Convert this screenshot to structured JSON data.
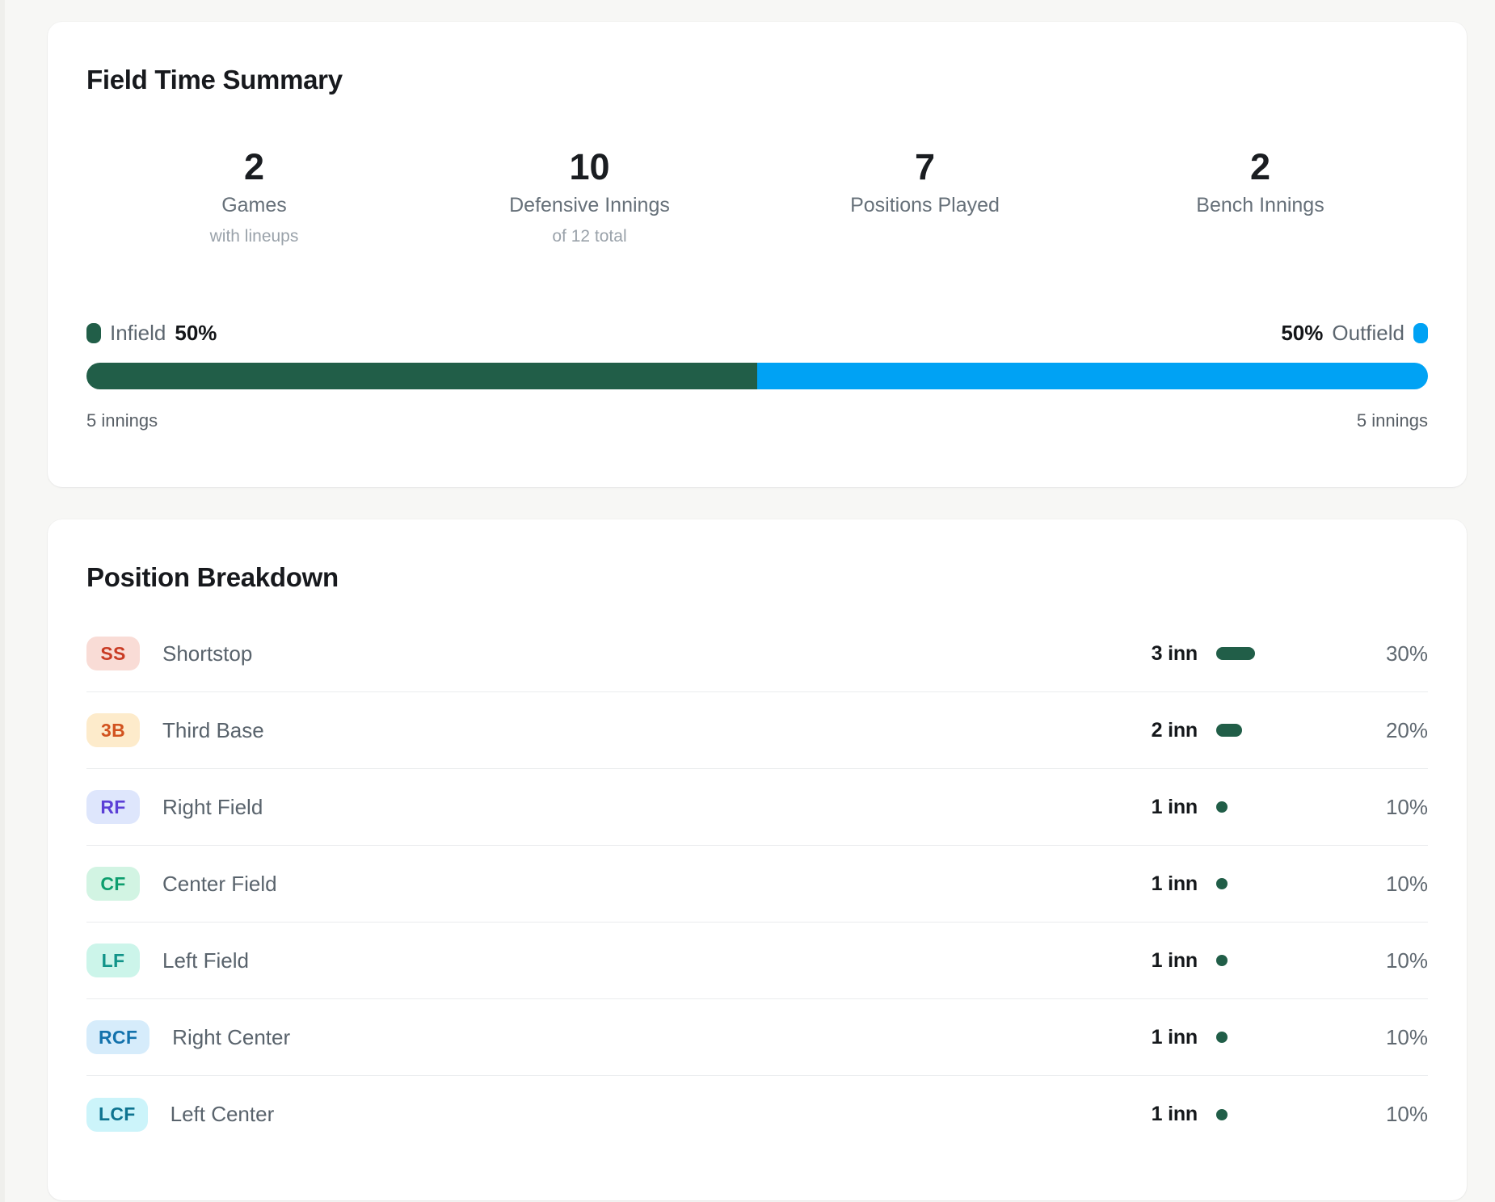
{
  "field_time_summary": {
    "title": "Field Time Summary",
    "stats": [
      {
        "value": "2",
        "label": "Games",
        "caption": "with lineups"
      },
      {
        "value": "10",
        "label": "Defensive Innings",
        "caption": "of 12 total"
      },
      {
        "value": "7",
        "label": "Positions Played",
        "caption": ""
      },
      {
        "value": "2",
        "label": "Bench Innings",
        "caption": ""
      }
    ],
    "split": {
      "infield_label": "Infield",
      "infield_pct": "50%",
      "outfield_pct": "50%",
      "outfield_label": "Outfield",
      "infield_innings": "5 innings",
      "outfield_innings": "5 innings",
      "infield_value": 50,
      "outfield_value": 50,
      "infield_color": "#215e48",
      "outfield_color": "#00a2f4"
    }
  },
  "position_breakdown": {
    "title": "Position Breakdown",
    "pill_color": "#215e48",
    "rows": [
      {
        "abbr": "SS",
        "name": "Shortstop",
        "innings": "3 inn",
        "innings_num": 3,
        "pct": "30%",
        "badge_bg": "#f9dcd6",
        "badge_color": "#c93b24"
      },
      {
        "abbr": "3B",
        "name": "Third Base",
        "innings": "2 inn",
        "innings_num": 2,
        "pct": "20%",
        "badge_bg": "#fdebcb",
        "badge_color": "#d2531f"
      },
      {
        "abbr": "RF",
        "name": "Right Field",
        "innings": "1 inn",
        "innings_num": 1,
        "pct": "10%",
        "badge_bg": "#dee6fc",
        "badge_color": "#5b3fd6"
      },
      {
        "abbr": "CF",
        "name": "Center Field",
        "innings": "1 inn",
        "innings_num": 1,
        "pct": "10%",
        "badge_bg": "#d2f4e3",
        "badge_color": "#0d9e6e"
      },
      {
        "abbr": "LF",
        "name": "Left Field",
        "innings": "1 inn",
        "innings_num": 1,
        "pct": "10%",
        "badge_bg": "#ccf5ea",
        "badge_color": "#119489"
      },
      {
        "abbr": "RCF",
        "name": "Right Center",
        "innings": "1 inn",
        "innings_num": 1,
        "pct": "10%",
        "badge_bg": "#d6ecfb",
        "badge_color": "#1372ac"
      },
      {
        "abbr": "LCF",
        "name": "Left Center",
        "innings": "1 inn",
        "innings_num": 1,
        "pct": "10%",
        "badge_bg": "#ccf4fa",
        "badge_color": "#0e7490"
      }
    ]
  }
}
